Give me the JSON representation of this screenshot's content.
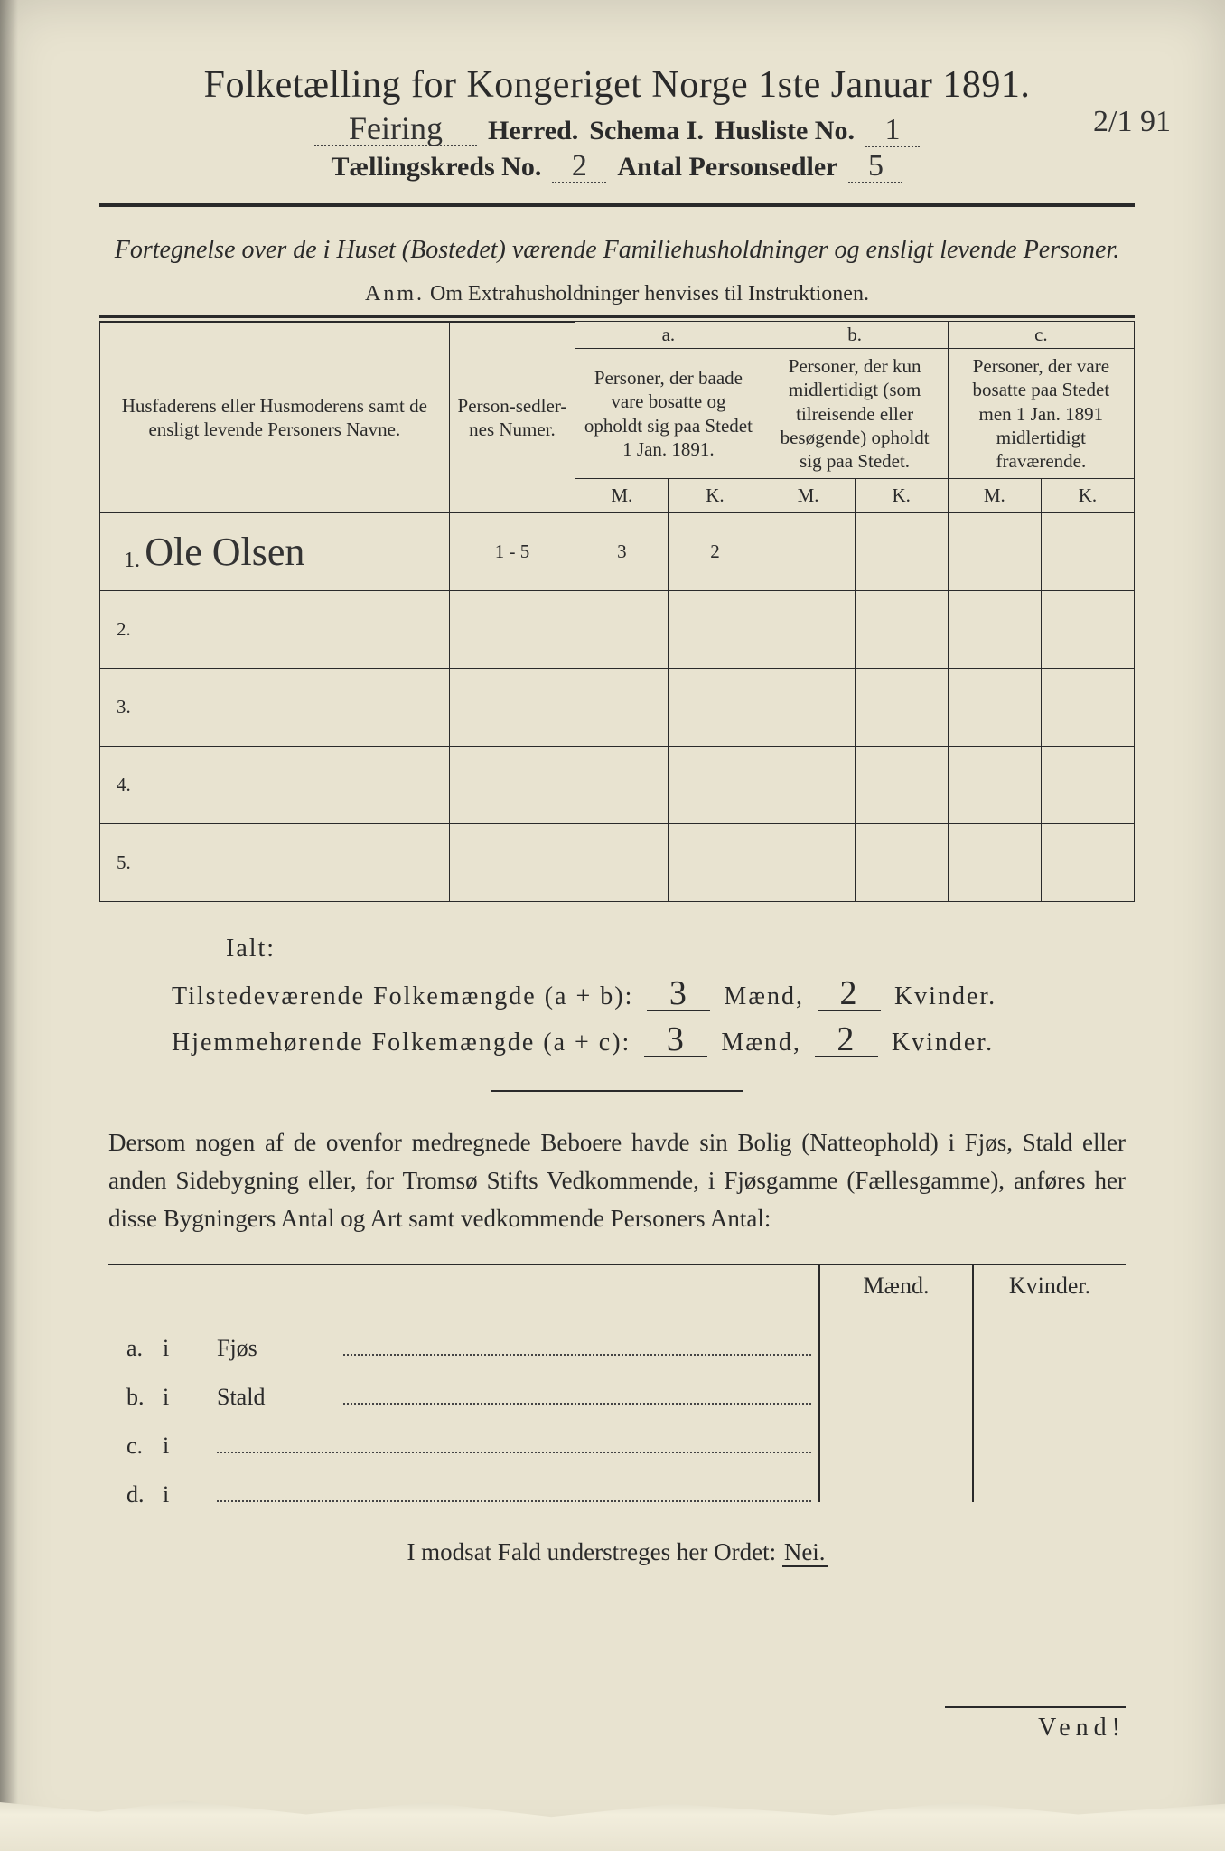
{
  "doc": {
    "title": "Folketælling for Kongeriget Norge 1ste Januar 1891.",
    "annotation": "2/1 91",
    "line1": {
      "herred_value": "Feiring",
      "herred_label": "Herred.",
      "schema_label": "Schema I.",
      "husliste_label": "Husliste No.",
      "husliste_value": "1"
    },
    "line2": {
      "kreds_label": "Tællingskreds No.",
      "kreds_value": "2",
      "personsedler_label": "Antal Personsedler",
      "personsedler_value": "5"
    },
    "subtitle": "Fortegnelse over de i Huset (Bostedet) værende Familiehusholdninger og ensligt levende Personer.",
    "anm_label": "Anm.",
    "anm_text": "Om Extrahusholdninger henvises til Instruktionen.",
    "table": {
      "col_name": "Husfaderens eller Husmoderens samt de ensligt levende Personers Navne.",
      "col_num": "Person-sedler-nes Numer.",
      "col_a_label": "a.",
      "col_a": "Personer, der baade vare bosatte og opholdt sig paa Stedet 1 Jan. 1891.",
      "col_b_label": "b.",
      "col_b": "Personer, der kun midlertidigt (som tilreisende eller besøgende) opholdt sig paa Stedet.",
      "col_c_label": "c.",
      "col_c": "Personer, der vare bosatte paa Stedet men 1 Jan. 1891 midlertidigt fraværende.",
      "m": "M.",
      "k": "K.",
      "rows": [
        {
          "n": "1.",
          "name": "Ole Olsen",
          "num": "1 - 5",
          "am": "3",
          "ak": "2",
          "bm": "",
          "bk": "",
          "cm": "",
          "ck": ""
        },
        {
          "n": "2.",
          "name": "",
          "num": "",
          "am": "",
          "ak": "",
          "bm": "",
          "bk": "",
          "cm": "",
          "ck": ""
        },
        {
          "n": "3.",
          "name": "",
          "num": "",
          "am": "",
          "ak": "",
          "bm": "",
          "bk": "",
          "cm": "",
          "ck": ""
        },
        {
          "n": "4.",
          "name": "",
          "num": "",
          "am": "",
          "ak": "",
          "bm": "",
          "bk": "",
          "cm": "",
          "ck": ""
        },
        {
          "n": "5.",
          "name": "",
          "num": "",
          "am": "",
          "ak": "",
          "bm": "",
          "bk": "",
          "cm": "",
          "ck": ""
        }
      ]
    },
    "totals": {
      "ialt": "Ialt:",
      "line_ab_label": "Tilstedeværende Folkemængde (a + b):",
      "line_ac_label": "Hjemmehørende Folkemængde (a + c):",
      "ab_m": "3",
      "ab_k": "2",
      "ac_m": "3",
      "ac_k": "2",
      "maend": "Mænd,",
      "kvinder": "Kvinder."
    },
    "para": "Dersom nogen af de ovenfor medregnede Beboere havde sin Bolig (Natteophold) i Fjøs, Stald eller anden Sidebygning eller, for Tromsø Stifts Vedkommende, i Fjøsgamme (Fællesgamme), anføres her disse Bygningers Antal og Art samt vedkommende Personers Antal:",
    "buildings": {
      "maend": "Mænd.",
      "kvinder": "Kvinder.",
      "rows": [
        {
          "lbl": "a.",
          "i": "i",
          "name": "Fjøs"
        },
        {
          "lbl": "b.",
          "i": "i",
          "name": "Stald"
        },
        {
          "lbl": "c.",
          "i": "i",
          "name": ""
        },
        {
          "lbl": "d.",
          "i": "i",
          "name": ""
        }
      ]
    },
    "nei_line_pre": "I modsat Fald understreges her Ordet:",
    "nei": "Nei.",
    "vend": "Vend!"
  },
  "style": {
    "page_bg": "#e8e3d0",
    "ink": "#2a2a2a",
    "hand_ink": "#333333"
  }
}
